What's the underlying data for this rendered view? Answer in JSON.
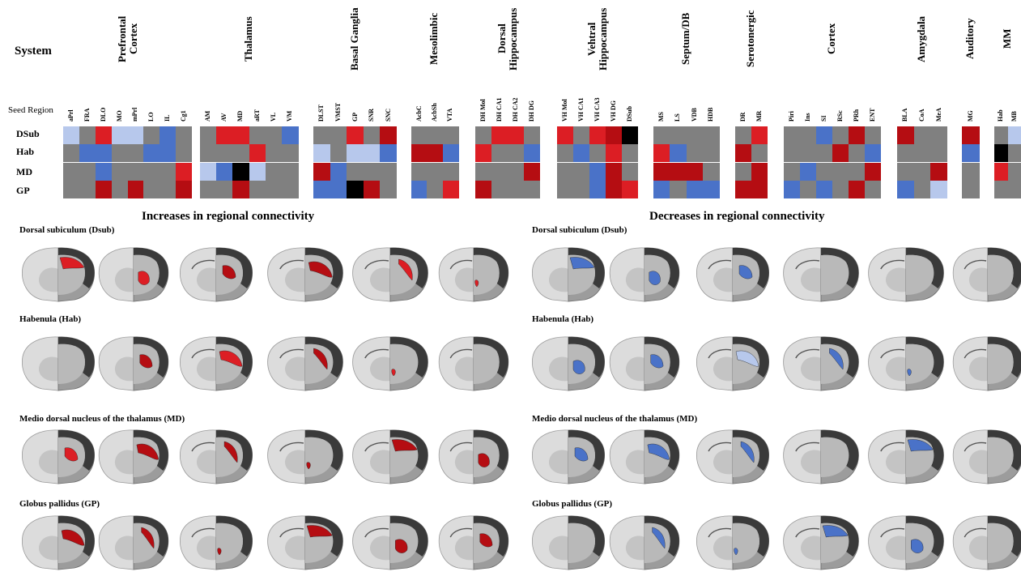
{
  "header": {
    "system_label": "System",
    "seed_region_label": "Seed Region"
  },
  "seeds": [
    "DSub",
    "Hab",
    "MD",
    "GP"
  ],
  "colors": {
    "gray": "#808080",
    "red": "#dc1e24",
    "darkred": "#b50d12",
    "blue": "#4a72c8",
    "lightblue": "#b7c8ec",
    "black": "#000000",
    "none": "#808080"
  },
  "groups": [
    {
      "title": "Prefrontal Cortex",
      "regions": [
        "aPrl",
        "FRA",
        "DLO",
        "MO",
        "mPrl",
        "LO",
        "IL",
        "Cg1"
      ],
      "cells": [
        [
          "lightblue",
          "gray",
          "red",
          "lightblue",
          "lightblue",
          "gray",
          "blue",
          "gray"
        ],
        [
          "gray",
          "blue",
          "blue",
          "gray",
          "gray",
          "blue",
          "blue",
          "gray"
        ],
        [
          "gray",
          "gray",
          "blue",
          "gray",
          "gray",
          "gray",
          "gray",
          "red"
        ],
        [
          "gray",
          "gray",
          "darkred",
          "gray",
          "darkred",
          "gray",
          "gray",
          "darkred"
        ]
      ]
    },
    {
      "title": "Thalamus",
      "regions": [
        "AM",
        "AV",
        "MD",
        "aRT",
        "VL",
        "VM"
      ],
      "cells": [
        [
          "gray",
          "red",
          "red",
          "gray",
          "gray",
          "blue"
        ],
        [
          "gray",
          "gray",
          "gray",
          "red",
          "gray",
          "gray"
        ],
        [
          "lightblue",
          "blue",
          "black",
          "lightblue",
          "gray",
          "gray"
        ],
        [
          "gray",
          "gray",
          "darkred",
          "gray",
          "gray",
          "gray"
        ]
      ]
    },
    {
      "title": "Basal Ganglia",
      "regions": [
        "DLST",
        "VMST",
        "GP",
        "SNR",
        "SNC"
      ],
      "cells": [
        [
          "gray",
          "gray",
          "red",
          "gray",
          "darkred"
        ],
        [
          "lightblue",
          "gray",
          "lightblue",
          "lightblue",
          "blue"
        ],
        [
          "darkred",
          "blue",
          "gray",
          "gray",
          "gray"
        ],
        [
          "blue",
          "blue",
          "black",
          "darkred",
          "gray"
        ]
      ]
    },
    {
      "title": "Mesolimbic",
      "regions": [
        "AcbC",
        "AcbSh",
        "VTA"
      ],
      "cells": [
        [
          "gray",
          "gray",
          "gray"
        ],
        [
          "darkred",
          "darkred",
          "blue"
        ],
        [
          "gray",
          "gray",
          "gray"
        ],
        [
          "blue",
          "gray",
          "red"
        ]
      ]
    },
    {
      "title": "Dorsal Hippocampus",
      "regions": [
        "DH Mol",
        "DH CA1",
        "DH CA2",
        "DH DG"
      ],
      "cells": [
        [
          "gray",
          "red",
          "red",
          "gray"
        ],
        [
          "red",
          "gray",
          "gray",
          "blue"
        ],
        [
          "gray",
          "gray",
          "gray",
          "darkred"
        ],
        [
          "darkred",
          "gray",
          "gray",
          "gray"
        ]
      ]
    },
    {
      "title": "Vehtral Hippocampus",
      "regions": [
        "VH Mol",
        "VH CA1",
        "VH CA3",
        "VH DG",
        "DSub"
      ],
      "cells": [
        [
          "red",
          "gray",
          "red",
          "darkred",
          "black"
        ],
        [
          "gray",
          "blue",
          "gray",
          "red",
          "gray"
        ],
        [
          "gray",
          "gray",
          "blue",
          "darkred",
          "gray"
        ],
        [
          "gray",
          "gray",
          "blue",
          "darkred",
          "red"
        ]
      ]
    },
    {
      "title": "Septum/DB",
      "regions": [
        "MS",
        "LS",
        "VDB",
        "HDB"
      ],
      "cells": [
        [
          "gray",
          "gray",
          "gray",
          "gray"
        ],
        [
          "red",
          "blue",
          "gray",
          "gray"
        ],
        [
          "darkred",
          "darkred",
          "darkred",
          "gray"
        ],
        [
          "blue",
          "gray",
          "blue",
          "blue"
        ]
      ]
    },
    {
      "title": "Serotonergic",
      "regions": [
        "DR",
        "MR"
      ],
      "cells": [
        [
          "gray",
          "red"
        ],
        [
          "darkred",
          "gray"
        ],
        [
          "gray",
          "darkred"
        ],
        [
          "darkred",
          "darkred"
        ]
      ]
    },
    {
      "title": "Cortex",
      "regions": [
        "Piri",
        "Ins",
        "SI",
        "RSc",
        "PRh",
        "ENT"
      ],
      "cells": [
        [
          "gray",
          "gray",
          "blue",
          "gray",
          "darkred",
          "gray"
        ],
        [
          "gray",
          "gray",
          "gray",
          "darkred",
          "gray",
          "blue"
        ],
        [
          "gray",
          "blue",
          "gray",
          "gray",
          "gray",
          "darkred"
        ],
        [
          "blue",
          "gray",
          "blue",
          "gray",
          "darkred",
          "gray"
        ]
      ]
    },
    {
      "title": "Amygdala",
      "regions": [
        "BLA",
        "CoA",
        "MeA"
      ],
      "cells": [
        [
          "darkred",
          "gray",
          "gray"
        ],
        [
          "gray",
          "gray",
          "gray"
        ],
        [
          "gray",
          "gray",
          "darkred"
        ],
        [
          "blue",
          "gray",
          "lightblue"
        ]
      ]
    },
    {
      "title": "Auditory",
      "regions": [
        "MG"
      ],
      "cells": [
        [
          "darkred"
        ],
        [
          "blue"
        ],
        [
          "gray"
        ],
        [
          "gray"
        ]
      ]
    },
    {
      "title": "MM",
      "regions": [
        "Hab",
        "MB"
      ],
      "cells": [
        [
          "gray",
          "lightblue"
        ],
        [
          "black",
          "gray"
        ],
        [
          "red",
          "gray"
        ],
        [
          "gray",
          "gray"
        ]
      ]
    }
  ],
  "sections": {
    "increase_title": "Increases in regional connectivity",
    "decrease_title": "Decreases in regional connectivity"
  },
  "brain_rows": [
    {
      "label": "Dorsal  subiculum (Dsub)"
    },
    {
      "label": "Habenula (Hab)"
    },
    {
      "label": "Medio  dorsal nucleus of the  thalamus (MD)"
    },
    {
      "label": "Globus pallidus (GP)"
    }
  ],
  "highlights": {
    "increase": [
      [
        "red",
        "red",
        "darkred",
        "darkred",
        "red",
        "red"
      ],
      [
        "none",
        "darkred",
        "red",
        "darkred",
        "red",
        "none"
      ],
      [
        "red",
        "darkred",
        "darkred",
        "darkred",
        "darkred",
        "darkred"
      ],
      [
        "darkred",
        "darkred",
        "darkred",
        "darkred",
        "darkred",
        "darkred"
      ]
    ],
    "decrease": [
      [
        "blue",
        "blue",
        "blue",
        "none",
        "none",
        "none"
      ],
      [
        "blue",
        "blue",
        "lightblue",
        "blue",
        "blue",
        "none"
      ],
      [
        "blue",
        "blue",
        "blue",
        "none",
        "blue",
        "none"
      ],
      [
        "none",
        "blue",
        "blue",
        "blue",
        "blue",
        "none"
      ]
    ]
  }
}
